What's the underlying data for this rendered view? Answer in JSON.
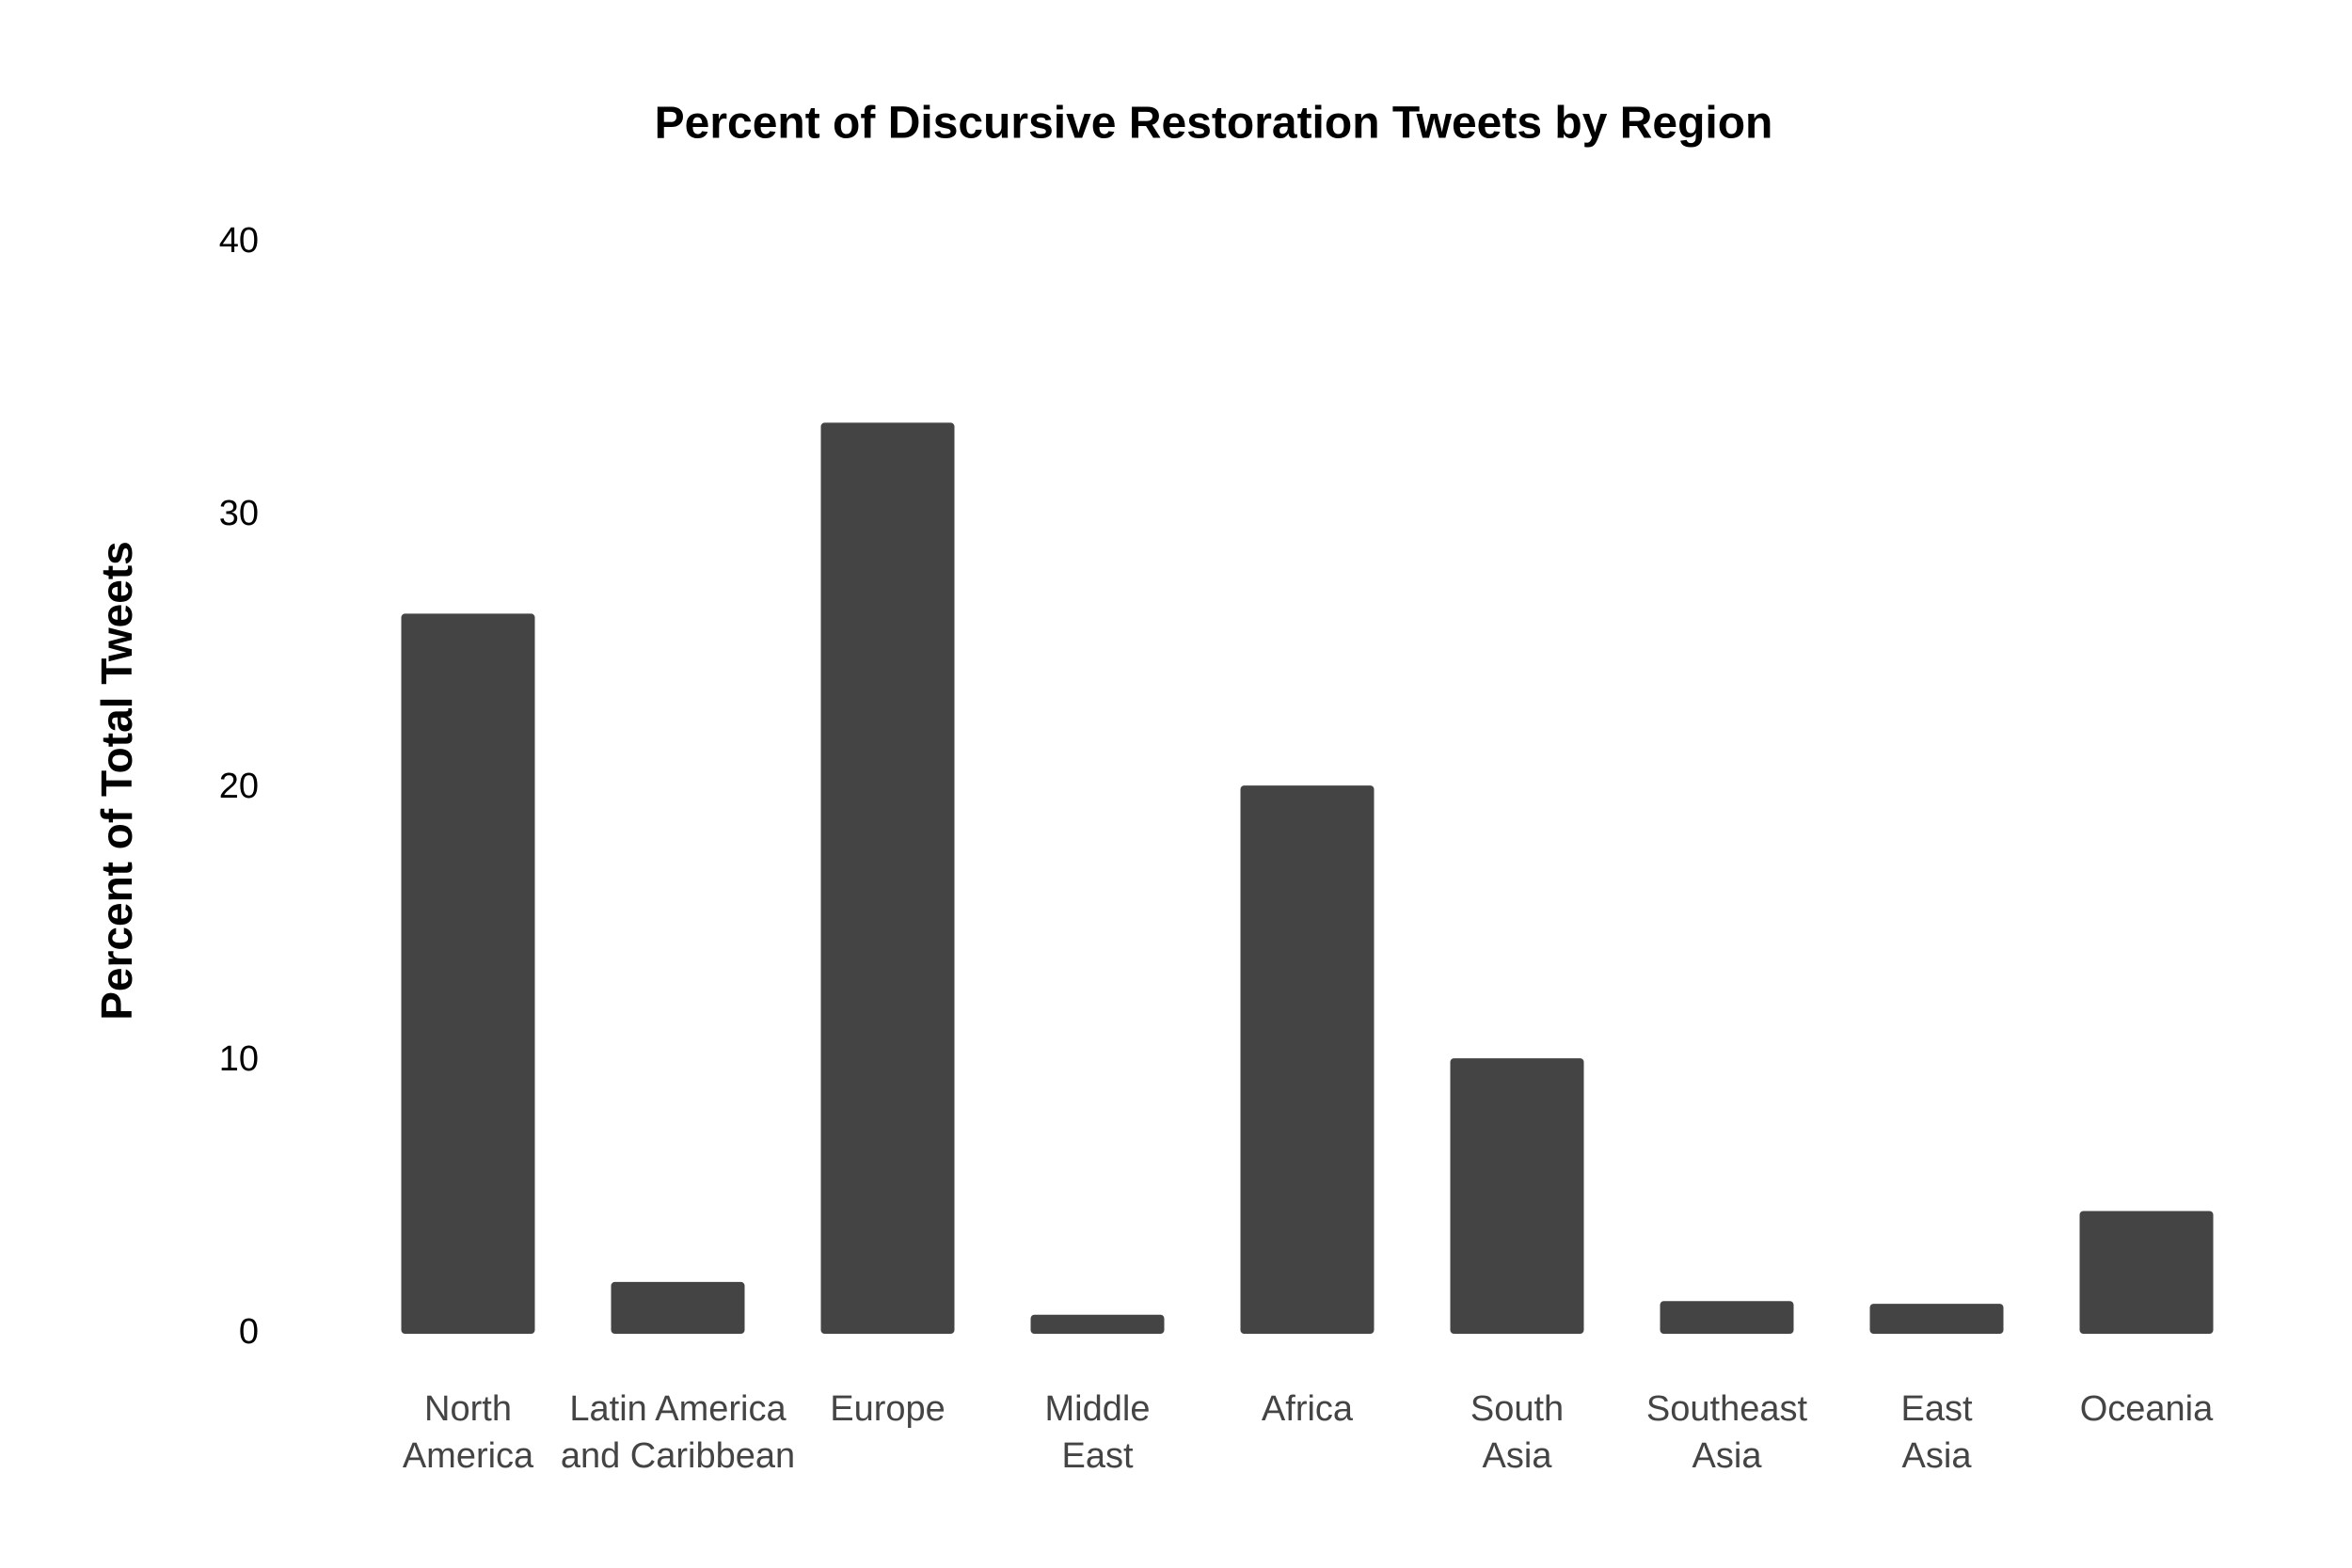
{
  "chart_data": {
    "type": "bar",
    "title": "Percent of Discursive Restoration Tweets by Region",
    "y_label": "Percent of Total Tweets",
    "categories": [
      "North\nAmerica",
      "Latin America\nand Caribbean",
      "Europe",
      "Middle\nEast",
      "Africa",
      "South\nAsia",
      "Southeast\nAsia",
      "East\nAsia",
      "Oceania"
    ],
    "values": [
      26.4,
      1.9,
      33.4,
      0.7,
      20.1,
      10.1,
      1.2,
      1.1,
      4.5
    ],
    "color": "#444444",
    "ylim": [
      0,
      40
    ],
    "yticks": [
      0,
      10,
      20,
      30,
      40
    ],
    "grid": false
  }
}
